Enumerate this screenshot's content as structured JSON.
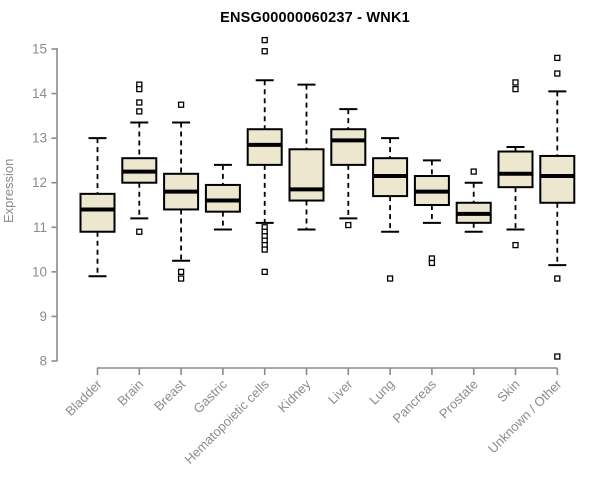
{
  "chart_data": {
    "type": "boxplot",
    "title": "ENSG00000060237 - WNK1",
    "ylabel": "Expression",
    "xlabel": "",
    "ylim": [
      7.85,
      15.25
    ],
    "yticks": [
      8,
      9,
      10,
      11,
      12,
      13,
      14,
      15
    ],
    "grid": false,
    "legend_position": "none",
    "categories": [
      "Bladder",
      "Brain",
      "Breast",
      "Gastric",
      "Hematopoietic cells",
      "Kidney",
      "Liver",
      "Lung",
      "Pancreas",
      "Prostate",
      "Skin",
      "Unknown / Other"
    ],
    "boxes": [
      {
        "category": "Bladder",
        "whisker_low": 9.9,
        "q1": 10.9,
        "median": 11.4,
        "q3": 11.75,
        "whisker_high": 13.0,
        "outliers": []
      },
      {
        "category": "Brain",
        "whisker_low": 11.2,
        "q1": 12.0,
        "median": 12.25,
        "q3": 12.55,
        "whisker_high": 13.35,
        "outliers": [
          14.2,
          14.1,
          13.8,
          13.6,
          10.9
        ]
      },
      {
        "category": "Breast",
        "whisker_low": 10.25,
        "q1": 11.4,
        "median": 11.8,
        "q3": 12.2,
        "whisker_high": 13.35,
        "outliers": [
          13.75,
          10.0,
          9.85
        ]
      },
      {
        "category": "Gastric",
        "whisker_low": 10.95,
        "q1": 11.35,
        "median": 11.6,
        "q3": 11.95,
        "whisker_high": 12.4,
        "outliers": []
      },
      {
        "category": "Hematopoietic cells",
        "whisker_low": 11.1,
        "q1": 12.4,
        "median": 12.85,
        "q3": 13.2,
        "whisker_high": 14.3,
        "outliers": [
          15.2,
          14.95,
          11.0,
          10.9,
          10.8,
          10.7,
          10.6,
          10.5,
          10.0
        ]
      },
      {
        "category": "Kidney",
        "whisker_low": 10.95,
        "q1": 11.6,
        "median": 11.85,
        "q3": 12.75,
        "whisker_high": 14.2,
        "outliers": []
      },
      {
        "category": "Liver",
        "whisker_low": 11.2,
        "q1": 12.4,
        "median": 12.95,
        "q3": 13.2,
        "whisker_high": 13.65,
        "outliers": [
          11.05
        ]
      },
      {
        "category": "Lung",
        "whisker_low": 10.9,
        "q1": 11.7,
        "median": 12.15,
        "q3": 12.55,
        "whisker_high": 13.0,
        "outliers": [
          9.85
        ]
      },
      {
        "category": "Pancreas",
        "whisker_low": 11.1,
        "q1": 11.5,
        "median": 11.8,
        "q3": 12.15,
        "whisker_high": 12.5,
        "outliers": [
          10.3,
          10.2
        ]
      },
      {
        "category": "Prostate",
        "whisker_low": 10.9,
        "q1": 11.1,
        "median": 11.3,
        "q3": 11.55,
        "whisker_high": 12.0,
        "outliers": [
          12.25
        ]
      },
      {
        "category": "Skin",
        "whisker_low": 10.95,
        "q1": 11.9,
        "median": 12.2,
        "q3": 12.7,
        "whisker_high": 12.8,
        "outliers": [
          14.25,
          14.1,
          10.6
        ]
      },
      {
        "category": "Unknown / Other",
        "whisker_low": 10.15,
        "q1": 11.55,
        "median": 12.15,
        "q3": 12.6,
        "whisker_high": 14.05,
        "outliers": [
          14.8,
          14.45,
          9.85,
          8.1
        ]
      }
    ],
    "colors": {
      "box_fill": "#ede7d0",
      "box_stroke": "#000000",
      "median": "#000000",
      "whisker": "#000000",
      "outlier_stroke": "#000000",
      "outlier_fill": "#ffffff",
      "axis": "#8c8c8c",
      "tick_label": "#8c8c8c",
      "title": "#000000",
      "background": "#ffffff"
    }
  }
}
